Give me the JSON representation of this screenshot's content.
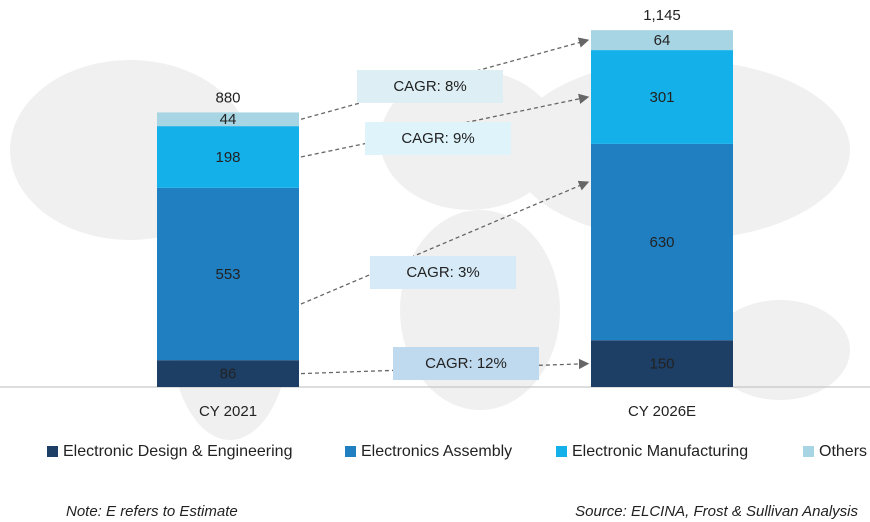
{
  "chart_data": {
    "type": "bar",
    "stacked": true,
    "categories": [
      "CY 2021",
      "CY 2026E"
    ],
    "series": [
      {
        "name": "Electronic Design & Engineering",
        "color": "#1d3f66",
        "values": [
          86,
          150
        ]
      },
      {
        "name": "Electronics Assembly",
        "color": "#1f7fc1",
        "values": [
          553,
          630
        ]
      },
      {
        "name": "Electronic Manufacturing",
        "color": "#14b0ea",
        "values": [
          198,
          301
        ]
      },
      {
        "name": "Others",
        "color": "#a8d5e3",
        "values": [
          44,
          64
        ]
      }
    ],
    "totals": {
      "values": [
        880,
        1145
      ],
      "value_labels": [
        "880",
        "1,145"
      ]
    },
    "annotations": [
      "CAGR: 12%",
      "CAGR: 3%",
      "CAGR: 9%",
      "CAGR: 8%"
    ],
    "ylim": [
      0,
      1200
    ],
    "legend": "bottom",
    "note": "Note: E refers to Estimate",
    "source": "Source: ELCINA, Frost & Sullivan Analysis"
  }
}
